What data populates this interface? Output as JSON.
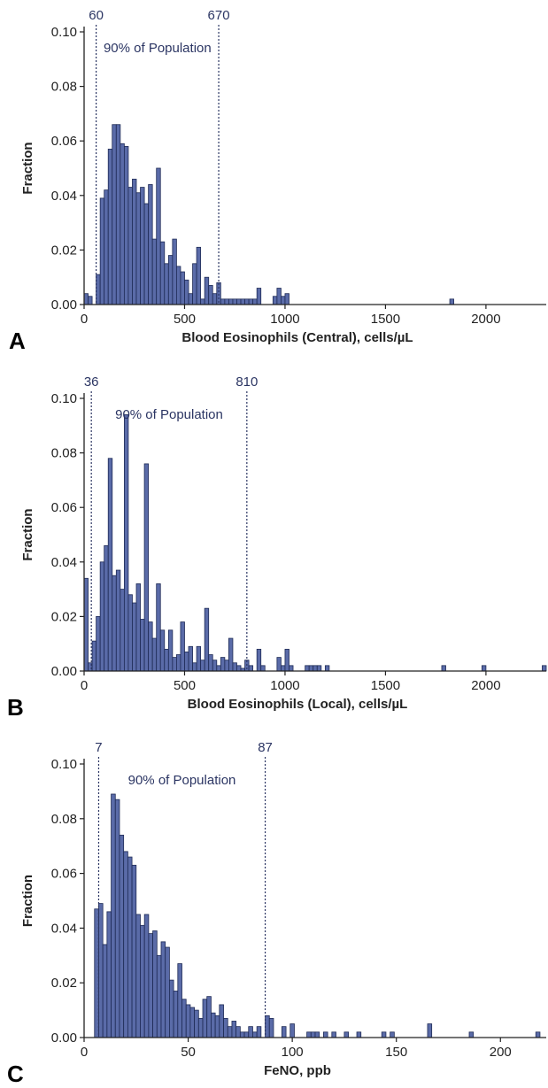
{
  "figure": {
    "colors": {
      "bar_fill": "#5a6ba8",
      "bar_stroke": "#1e2a55",
      "annotation": "#2b3563",
      "axis": "#222222"
    }
  },
  "chart_data": [
    {
      "type": "bar",
      "panel_letter": "A",
      "xlabel": "Blood Eosinophils (Central), cells/µL",
      "ylabel": "Fraction",
      "xlim": [
        0,
        2300
      ],
      "ylim": [
        0,
        0.1
      ],
      "xticks": [
        0,
        500,
        1000,
        1500,
        2000
      ],
      "xtick_labels": [
        "0",
        "500",
        "1000",
        "1500",
        "2000"
      ],
      "yticks": [
        0,
        0.02,
        0.04,
        0.06,
        0.08,
        0.1
      ],
      "ytick_labels": [
        "0.00",
        "0.02",
        "0.04",
        "0.06",
        "0.08",
        "0.10"
      ],
      "grid": false,
      "bin_width": 20,
      "bins": [
        [
          0,
          0.004
        ],
        [
          20,
          0.003
        ],
        [
          40,
          0.0
        ],
        [
          60,
          0.011
        ],
        [
          80,
          0.039
        ],
        [
          100,
          0.042
        ],
        [
          120,
          0.057
        ],
        [
          140,
          0.066
        ],
        [
          160,
          0.066
        ],
        [
          180,
          0.059
        ],
        [
          200,
          0.058
        ],
        [
          220,
          0.043
        ],
        [
          240,
          0.046
        ],
        [
          260,
          0.041
        ],
        [
          280,
          0.043
        ],
        [
          300,
          0.037
        ],
        [
          320,
          0.044
        ],
        [
          340,
          0.024
        ],
        [
          360,
          0.05
        ],
        [
          380,
          0.023
        ],
        [
          400,
          0.015
        ],
        [
          420,
          0.018
        ],
        [
          440,
          0.024
        ],
        [
          460,
          0.014
        ],
        [
          480,
          0.012
        ],
        [
          500,
          0.009
        ],
        [
          520,
          0.004
        ],
        [
          540,
          0.015
        ],
        [
          560,
          0.021
        ],
        [
          580,
          0.002
        ],
        [
          600,
          0.01
        ],
        [
          620,
          0.007
        ],
        [
          640,
          0.004
        ],
        [
          660,
          0.008
        ],
        [
          680,
          0.002
        ],
        [
          700,
          0.002
        ],
        [
          720,
          0.002
        ],
        [
          740,
          0.002
        ],
        [
          760,
          0.002
        ],
        [
          780,
          0.002
        ],
        [
          800,
          0.002
        ],
        [
          820,
          0.002
        ],
        [
          840,
          0.002
        ],
        [
          860,
          0.006
        ],
        [
          940,
          0.003
        ],
        [
          960,
          0.006
        ],
        [
          980,
          0.003
        ],
        [
          1000,
          0.004
        ],
        [
          1820,
          0.002
        ]
      ],
      "reference_lines": [
        {
          "x": 60,
          "label": "60"
        },
        {
          "x": 670,
          "label": "670"
        }
      ],
      "range_label": "90% of Population"
    },
    {
      "type": "bar",
      "panel_letter": "B",
      "xlabel": "Blood Eosinophils (Local), cells/µL",
      "ylabel": "Fraction",
      "xlim": [
        0,
        2300
      ],
      "ylim": [
        0,
        0.1
      ],
      "xticks": [
        0,
        500,
        1000,
        1500,
        2000
      ],
      "xtick_labels": [
        "0",
        "500",
        "1000",
        "1500",
        "2000"
      ],
      "yticks": [
        0,
        0.02,
        0.04,
        0.06,
        0.08,
        0.1
      ],
      "ytick_labels": [
        "0.00",
        "0.02",
        "0.04",
        "0.06",
        "0.08",
        "0.10"
      ],
      "grid": false,
      "bin_width": 20,
      "bins": [
        [
          0,
          0.034
        ],
        [
          20,
          0.003
        ],
        [
          40,
          0.011
        ],
        [
          60,
          0.02
        ],
        [
          80,
          0.04
        ],
        [
          100,
          0.046
        ],
        [
          120,
          0.078
        ],
        [
          140,
          0.035
        ],
        [
          160,
          0.037
        ],
        [
          180,
          0.03
        ],
        [
          200,
          0.094
        ],
        [
          220,
          0.028
        ],
        [
          240,
          0.025
        ],
        [
          260,
          0.032
        ],
        [
          280,
          0.019
        ],
        [
          300,
          0.076
        ],
        [
          320,
          0.018
        ],
        [
          340,
          0.012
        ],
        [
          360,
          0.032
        ],
        [
          380,
          0.015
        ],
        [
          400,
          0.008
        ],
        [
          420,
          0.015
        ],
        [
          440,
          0.005
        ],
        [
          460,
          0.006
        ],
        [
          480,
          0.018
        ],
        [
          500,
          0.007
        ],
        [
          520,
          0.009
        ],
        [
          540,
          0.003
        ],
        [
          560,
          0.009
        ],
        [
          580,
          0.004
        ],
        [
          600,
          0.023
        ],
        [
          620,
          0.006
        ],
        [
          640,
          0.004
        ],
        [
          660,
          0.002
        ],
        [
          680,
          0.005
        ],
        [
          700,
          0.004
        ],
        [
          720,
          0.012
        ],
        [
          740,
          0.003
        ],
        [
          760,
          0.002
        ],
        [
          780,
          0.001
        ],
        [
          800,
          0.004
        ],
        [
          820,
          0.002
        ],
        [
          860,
          0.008
        ],
        [
          880,
          0.002
        ],
        [
          960,
          0.005
        ],
        [
          980,
          0.002
        ],
        [
          1000,
          0.008
        ],
        [
          1020,
          0.002
        ],
        [
          1100,
          0.002
        ],
        [
          1120,
          0.002
        ],
        [
          1140,
          0.002
        ],
        [
          1160,
          0.002
        ],
        [
          1200,
          0.002
        ],
        [
          1780,
          0.002
        ],
        [
          1980,
          0.002
        ],
        [
          2280,
          0.002
        ]
      ],
      "reference_lines": [
        {
          "x": 36,
          "label": "36"
        },
        {
          "x": 810,
          "label": "810"
        }
      ],
      "range_label": "90% of Population"
    },
    {
      "type": "bar",
      "panel_letter": "C",
      "xlabel": "FeNO, ppb",
      "ylabel": "Fraction",
      "xlim": [
        0,
        222
      ],
      "ylim": [
        0,
        0.1
      ],
      "xticks": [
        0,
        50,
        100,
        150,
        200
      ],
      "xtick_labels": [
        "0",
        "50",
        "100",
        "150",
        "200"
      ],
      "yticks": [
        0,
        0.02,
        0.04,
        0.06,
        0.08,
        0.1
      ],
      "ytick_labels": [
        "0.00",
        "0.02",
        "0.04",
        "0.06",
        "0.08",
        "0.10"
      ],
      "grid": false,
      "bin_width": 2,
      "bins": [
        [
          5,
          0.047
        ],
        [
          7,
          0.049
        ],
        [
          9,
          0.034
        ],
        [
          11,
          0.046
        ],
        [
          13,
          0.089
        ],
        [
          15,
          0.087
        ],
        [
          17,
          0.074
        ],
        [
          19,
          0.068
        ],
        [
          21,
          0.066
        ],
        [
          23,
          0.063
        ],
        [
          25,
          0.045
        ],
        [
          27,
          0.041
        ],
        [
          29,
          0.045
        ],
        [
          31,
          0.038
        ],
        [
          33,
          0.039
        ],
        [
          35,
          0.03
        ],
        [
          37,
          0.035
        ],
        [
          39,
          0.033
        ],
        [
          41,
          0.021
        ],
        [
          43,
          0.017
        ],
        [
          45,
          0.027
        ],
        [
          47,
          0.014
        ],
        [
          49,
          0.012
        ],
        [
          51,
          0.011
        ],
        [
          53,
          0.01
        ],
        [
          55,
          0.007
        ],
        [
          57,
          0.014
        ],
        [
          59,
          0.015
        ],
        [
          61,
          0.009
        ],
        [
          63,
          0.008
        ],
        [
          65,
          0.012
        ],
        [
          67,
          0.007
        ],
        [
          69,
          0.004
        ],
        [
          71,
          0.006
        ],
        [
          73,
          0.004
        ],
        [
          75,
          0.002
        ],
        [
          77,
          0.002
        ],
        [
          79,
          0.004
        ],
        [
          81,
          0.002
        ],
        [
          83,
          0.004
        ],
        [
          87,
          0.008
        ],
        [
          89,
          0.007
        ],
        [
          95,
          0.004
        ],
        [
          99,
          0.005
        ],
        [
          107,
          0.002
        ],
        [
          109,
          0.002
        ],
        [
          111,
          0.002
        ],
        [
          115,
          0.002
        ],
        [
          119,
          0.002
        ],
        [
          125,
          0.002
        ],
        [
          131,
          0.002
        ],
        [
          143,
          0.002
        ],
        [
          147,
          0.002
        ],
        [
          165,
          0.005
        ],
        [
          185,
          0.002
        ],
        [
          217,
          0.002
        ]
      ],
      "reference_lines": [
        {
          "x": 7,
          "label": "7"
        },
        {
          "x": 87,
          "label": "87"
        }
      ],
      "range_label": "90% of Population"
    }
  ]
}
